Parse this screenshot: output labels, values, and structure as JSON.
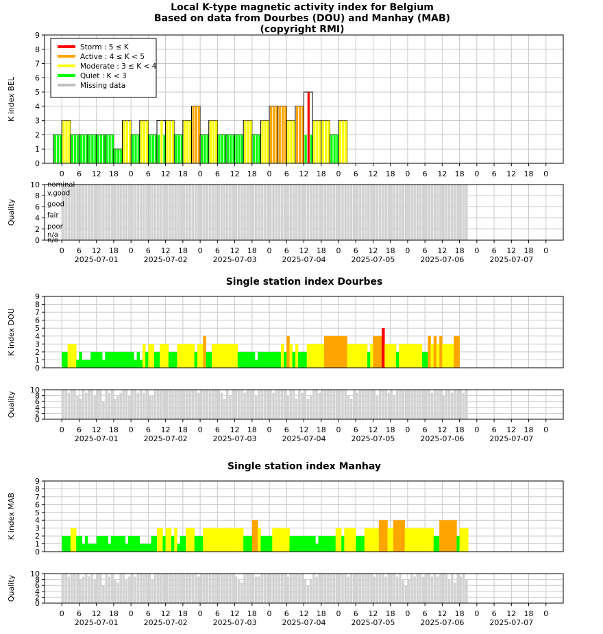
{
  "chart_data": [
    {
      "type": "bar",
      "title_lines": [
        "Local K-type magnetic activity index for Belgium",
        "Based on data from Dourbes (DOU) and Manhay (MAB)",
        "(copyright RMI)"
      ],
      "ylabel": "K index BEL",
      "ylim": [
        0,
        9
      ],
      "yticks": [
        0,
        1,
        2,
        3,
        4,
        5,
        6,
        7,
        8,
        9
      ],
      "hour_ticks": [
        "0",
        "6",
        "12",
        "18",
        "0",
        "6",
        "12",
        "18",
        "0",
        "6",
        "12",
        "18",
        "0",
        "6",
        "12",
        "18",
        "0",
        "6",
        "12",
        "18",
        "0",
        "6",
        "12",
        "18",
        "0",
        "6",
        "12",
        "18",
        "0"
      ],
      "start_hour": -3,
      "bar_hours": 3,
      "values": [
        2,
        3,
        2,
        2,
        2,
        2,
        2,
        1,
        3,
        2,
        3,
        2,
        2,
        3,
        2,
        3,
        4,
        2,
        3,
        2,
        2,
        2,
        3,
        2,
        3,
        4,
        4,
        3,
        4,
        2,
        3,
        3,
        2,
        3
      ],
      "outline_values": [
        2,
        3,
        2,
        2,
        2,
        2,
        2,
        1,
        3,
        2,
        3,
        2,
        3,
        3,
        2,
        3,
        4,
        2,
        3,
        2,
        2,
        2,
        3,
        2,
        3,
        4,
        4,
        3,
        4,
        5,
        3,
        3,
        2,
        3
      ],
      "legend": [
        {
          "label": "Storm : 5 ≤ K",
          "color": "#ff0000"
        },
        {
          "label": "Active : 4 ≤ K < 5",
          "color": "#ffa500"
        },
        {
          "label": "Moderate : 3 ≤ K < 4",
          "color": "#ffff00"
        },
        {
          "label": "Quiet : K < 3",
          "color": "#00ff00"
        },
        {
          "label": "Missing data",
          "color": "#bebebe"
        }
      ]
    },
    {
      "type": "bar",
      "ylabel": "Quality",
      "ylim": [
        0,
        10
      ],
      "yticks": [
        0,
        2,
        4,
        6,
        8,
        10
      ],
      "quality_labels": [
        "nominal",
        "v.good",
        "good",
        "fair",
        "poor",
        "n/a",
        "n/o"
      ],
      "date_labels": [
        "2025-07-01",
        "2025-07-02",
        "2025-07-03",
        "2025-07-04",
        "2025-07-05",
        "2025-07-06",
        "2025-07-07"
      ],
      "fill_until_hour": 141,
      "value": 10
    },
    {
      "type": "bar",
      "title": "Single station index Dourbes",
      "ylabel": "K index DOU",
      "ylim": [
        0,
        9
      ],
      "yticks": [
        0,
        1,
        2,
        3,
        4,
        5,
        6,
        7,
        8,
        9
      ],
      "start_hour": 0,
      "bar_hours": 1,
      "hourly_values": [
        2,
        2,
        3,
        3,
        3,
        1,
        2,
        1,
        1,
        1,
        2,
        2,
        2,
        2,
        1,
        2,
        2,
        2,
        2,
        2,
        2,
        2,
        2,
        2,
        2,
        1,
        2,
        1,
        3,
        2,
        3,
        3,
        2,
        2,
        3,
        3,
        3,
        2,
        2,
        2,
        3,
        3,
        3,
        3,
        3,
        3,
        2,
        3,
        3,
        4,
        2,
        2,
        3,
        3,
        3,
        3,
        3,
        3,
        3,
        3,
        3,
        2,
        2,
        2,
        2,
        2,
        2,
        1,
        2,
        2,
        2,
        2,
        2,
        2,
        2,
        2,
        3,
        2,
        4,
        3,
        2,
        3,
        2,
        2,
        2,
        3,
        3,
        3,
        3,
        3,
        3,
        4,
        4,
        4,
        4,
        4,
        4,
        4,
        4,
        3,
        3,
        3,
        3,
        3,
        3,
        3,
        2,
        3,
        4,
        4,
        4,
        5,
        3,
        3,
        3,
        3,
        2,
        3,
        3,
        3,
        3,
        3,
        3,
        3,
        3,
        2,
        2,
        4,
        3,
        4,
        3,
        4,
        3,
        3,
        3,
        3,
        4,
        4
      ],
      "quality_sparse": [
        [
          2,
          9
        ],
        [
          5,
          8
        ],
        [
          6,
          7
        ],
        [
          8,
          9
        ],
        [
          11,
          8
        ],
        [
          14,
          6
        ],
        [
          16,
          9
        ],
        [
          18,
          7
        ],
        [
          19,
          8
        ],
        [
          20,
          9
        ],
        [
          23,
          8
        ],
        [
          26,
          9
        ],
        [
          28,
          9
        ],
        [
          30,
          8
        ],
        [
          31,
          8
        ],
        [
          47,
          9
        ],
        [
          55,
          9
        ],
        [
          56,
          7
        ],
        [
          58,
          8
        ],
        [
          63,
          9
        ],
        [
          67,
          8
        ],
        [
          73,
          9
        ],
        [
          78,
          8
        ],
        [
          81,
          7
        ],
        [
          83,
          9
        ],
        [
          85,
          7
        ],
        [
          86,
          8
        ],
        [
          89,
          9
        ],
        [
          99,
          8
        ],
        [
          100,
          7
        ],
        [
          102,
          9
        ],
        [
          109,
          8
        ],
        [
          113,
          9
        ],
        [
          115,
          8
        ],
        [
          128,
          9
        ],
        [
          132,
          8
        ],
        [
          135,
          9
        ],
        [
          139,
          9
        ]
      ]
    },
    {
      "type": "bar",
      "title": "Single station index Manhay",
      "ylabel": "K index MAB",
      "ylim": [
        0,
        9
      ],
      "yticks": [
        0,
        1,
        2,
        3,
        4,
        5,
        6,
        7,
        8,
        9
      ],
      "start_hour": 0,
      "bar_hours": 1,
      "hourly_values": [
        2,
        2,
        2,
        3,
        3,
        2,
        2,
        1,
        2,
        1,
        1,
        1,
        2,
        2,
        2,
        2,
        1,
        2,
        2,
        2,
        2,
        2,
        1,
        2,
        2,
        2,
        2,
        1,
        1,
        1,
        1,
        2,
        2,
        3,
        3,
        2,
        3,
        3,
        2,
        3,
        1,
        2,
        2,
        3,
        3,
        3,
        2,
        2,
        2,
        3,
        3,
        3,
        3,
        3,
        3,
        3,
        3,
        3,
        3,
        3,
        3,
        3,
        3,
        2,
        2,
        2,
        4,
        4,
        3,
        2,
        2,
        2,
        2,
        3,
        3,
        3,
        3,
        3,
        3,
        2,
        2,
        2,
        2,
        2,
        2,
        2,
        2,
        2,
        1,
        2,
        2,
        2,
        2,
        2,
        2,
        3,
        3,
        2,
        3,
        3,
        3,
        3,
        2,
        2,
        2,
        3,
        3,
        3,
        3,
        3,
        4,
        4,
        4,
        3,
        3,
        4,
        4,
        4,
        4,
        3,
        3,
        3,
        3,
        3,
        3,
        3,
        3,
        3,
        3,
        2,
        2,
        4,
        4,
        4,
        4,
        4,
        4,
        2,
        3,
        3,
        3,
        3,
        3,
        3,
        2,
        2,
        3,
        4,
        3,
        4,
        3,
        4,
        3,
        3,
        3,
        4,
        4
      ],
      "quality_sparse": [
        [
          2,
          9
        ],
        [
          6,
          8
        ],
        [
          7,
          9
        ],
        [
          9,
          9
        ],
        [
          11,
          8
        ],
        [
          14,
          6
        ],
        [
          16,
          9
        ],
        [
          18,
          8
        ],
        [
          19,
          7
        ],
        [
          22,
          8
        ],
        [
          23,
          9
        ],
        [
          25,
          9
        ],
        [
          31,
          8
        ],
        [
          47,
          9
        ],
        [
          60,
          9
        ],
        [
          61,
          8
        ],
        [
          62,
          7
        ],
        [
          67,
          9
        ],
        [
          68,
          9
        ],
        [
          78,
          9
        ],
        [
          84,
          8
        ],
        [
          85,
          6
        ],
        [
          86,
          8
        ],
        [
          88,
          9
        ],
        [
          99,
          9
        ],
        [
          108,
          9
        ],
        [
          112,
          9
        ],
        [
          116,
          9
        ],
        [
          118,
          8
        ],
        [
          119,
          6
        ],
        [
          120,
          8
        ],
        [
          122,
          9
        ],
        [
          125,
          9
        ],
        [
          128,
          9
        ],
        [
          130,
          9
        ],
        [
          134,
          8
        ],
        [
          136,
          7
        ],
        [
          138,
          9
        ],
        [
          140,
          8
        ]
      ]
    }
  ],
  "shared_axis": {
    "hour_ticks": [
      "0",
      "6",
      "12",
      "18",
      "0",
      "6",
      "12",
      "18",
      "0",
      "6",
      "12",
      "18",
      "0",
      "6",
      "12",
      "18",
      "0",
      "6",
      "12",
      "18",
      "0",
      "6",
      "12",
      "18",
      "0",
      "6",
      "12",
      "18",
      "0"
    ],
    "date_labels": [
      "2025-07-01",
      "2025-07-02",
      "2025-07-03",
      "2025-07-04",
      "2025-07-05",
      "2025-07-06",
      "2025-07-07"
    ],
    "xlim_hours": [
      -6,
      174
    ]
  },
  "colors": {
    "storm": "#ff0000",
    "active": "#ffa500",
    "moderate": "#ffff00",
    "quiet": "#00ff00",
    "missing": "#bebebe",
    "quality": "#d3d3d3",
    "grid": "#c8c8c8"
  }
}
